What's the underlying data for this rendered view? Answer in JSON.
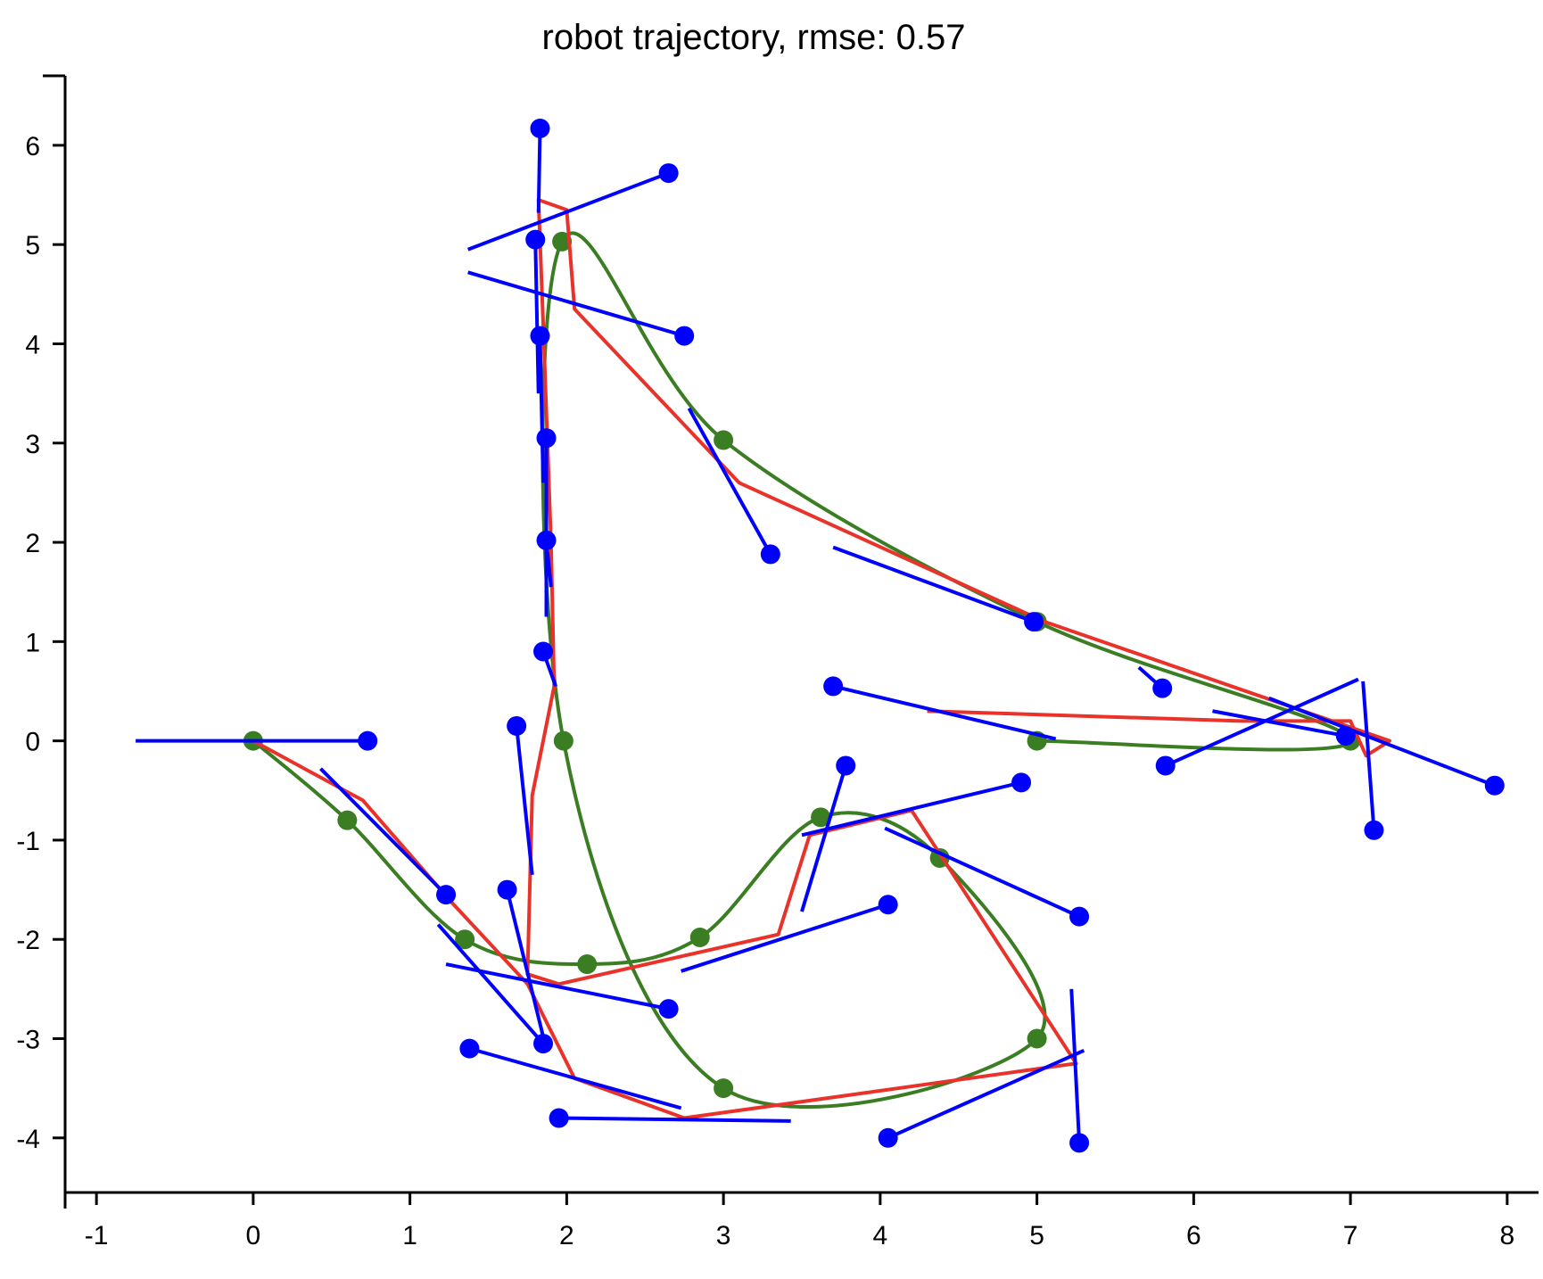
{
  "chart_data": {
    "type": "line",
    "title": "robot trajectory, rmse: 0.57",
    "xlabel": "",
    "ylabel": "",
    "xlim": [
      -1.2,
      8.2
    ],
    "ylim": [
      -4.55,
      6.7
    ],
    "xticks": [
      "-1",
      "0",
      "1",
      "2",
      "3",
      "4",
      "5",
      "6",
      "7",
      "8"
    ],
    "yticks": [
      "-4",
      "-3",
      "-2",
      "-1",
      "0",
      "1",
      "2",
      "3",
      "4",
      "5",
      "6"
    ],
    "grid": false,
    "legend": "none",
    "series": [
      {
        "role": "ground-truth-path",
        "color": "#3a7d22",
        "kind": "smooth-line",
        "points": [
          [
            0,
            0
          ],
          [
            0.6,
            -0.8
          ],
          [
            1.35,
            -2.0
          ],
          [
            2.13,
            -2.25
          ],
          [
            2.85,
            -1.98
          ],
          [
            3.62,
            -0.77
          ],
          [
            4.38,
            -1.18
          ],
          [
            5.0,
            -3.0
          ],
          [
            3.0,
            -3.5
          ],
          [
            1.98,
            0.0
          ],
          [
            1.97,
            5.03
          ],
          [
            3.0,
            3.03
          ],
          [
            5.0,
            1.2
          ],
          [
            7.0,
            0.0
          ],
          [
            5.0,
            0.0
          ]
        ]
      },
      {
        "role": "estimated-path",
        "color": "#e8322a",
        "kind": "polyline",
        "points": [
          [
            0,
            0
          ],
          [
            0.7,
            -0.6
          ],
          [
            1.25,
            -1.6
          ],
          [
            1.75,
            -2.45
          ],
          [
            2.05,
            -3.4
          ],
          [
            2.75,
            -3.8
          ],
          [
            5.25,
            -3.25
          ],
          [
            4.2,
            -0.7
          ],
          [
            3.55,
            -0.95
          ],
          [
            3.35,
            -1.95
          ],
          [
            1.95,
            -2.45
          ],
          [
            1.75,
            -2.35
          ],
          [
            1.78,
            -0.55
          ],
          [
            1.92,
            0.55
          ],
          [
            1.9,
            2.0
          ],
          [
            1.85,
            4.2
          ],
          [
            1.82,
            5.45
          ],
          [
            2.0,
            5.35
          ],
          [
            2.05,
            4.35
          ],
          [
            3.1,
            2.6
          ],
          [
            5.05,
            1.2
          ],
          [
            7.25,
            0.0
          ],
          [
            7.1,
            -0.15
          ],
          [
            7.0,
            0.2
          ],
          [
            6.3,
            0.2
          ],
          [
            4.3,
            0.3
          ]
        ]
      },
      {
        "role": "pose-estimates",
        "color": "#0000ff",
        "kind": "poses",
        "points": [
          [
            0.73,
            0.0
          ],
          [
            1.23,
            -1.55
          ],
          [
            1.85,
            -3.05
          ],
          [
            1.38,
            -3.1
          ],
          [
            2.65,
            -2.7
          ],
          [
            1.95,
            -3.8
          ],
          [
            4.05,
            -4.0
          ],
          [
            5.27,
            -4.05
          ],
          [
            5.27,
            -1.77
          ],
          [
            4.05,
            -1.65
          ],
          [
            3.78,
            -0.25
          ],
          [
            4.9,
            -0.42
          ],
          [
            3.7,
            0.55
          ],
          [
            1.68,
            0.15
          ],
          [
            1.62,
            -1.5
          ],
          [
            1.85,
            0.9
          ],
          [
            1.87,
            2.02
          ],
          [
            1.87,
            3.05
          ],
          [
            1.83,
            4.08
          ],
          [
            1.8,
            5.05
          ],
          [
            1.83,
            6.17
          ],
          [
            2.65,
            5.72
          ],
          [
            2.75,
            4.08
          ],
          [
            3.3,
            1.88
          ],
          [
            4.98,
            1.2
          ],
          [
            5.8,
            0.53
          ],
          [
            6.97,
            0.05
          ],
          [
            7.92,
            -0.45
          ],
          [
            7.15,
            -0.9
          ],
          [
            5.82,
            -0.25
          ]
        ],
        "headings": [
          [
            -0.75,
            0.0
          ],
          [
            0.43,
            -0.28
          ],
          [
            1.18,
            -1.85
          ],
          [
            2.73,
            -3.7
          ],
          [
            1.23,
            -2.25
          ],
          [
            3.43,
            -3.83
          ],
          [
            5.3,
            -3.12
          ],
          [
            5.22,
            -2.5
          ],
          [
            4.03,
            -0.88
          ],
          [
            2.73,
            -2.32
          ],
          [
            3.5,
            -1.72
          ],
          [
            3.5,
            -0.95
          ],
          [
            5.12,
            0.02
          ],
          [
            1.78,
            -1.35
          ],
          [
            1.85,
            -2.98
          ],
          [
            1.93,
            0.55
          ],
          [
            1.9,
            1.55
          ],
          [
            1.87,
            1.25
          ],
          [
            1.85,
            2.6
          ],
          [
            1.82,
            3.5
          ],
          [
            1.82,
            5.32
          ],
          [
            1.37,
            4.95
          ],
          [
            1.37,
            4.72
          ],
          [
            2.78,
            3.35
          ],
          [
            3.7,
            1.95
          ],
          [
            5.65,
            0.74
          ],
          [
            6.12,
            0.3
          ],
          [
            6.48,
            0.43
          ],
          [
            7.08,
            0.6
          ],
          [
            7.05,
            0.62
          ]
        ]
      }
    ]
  }
}
